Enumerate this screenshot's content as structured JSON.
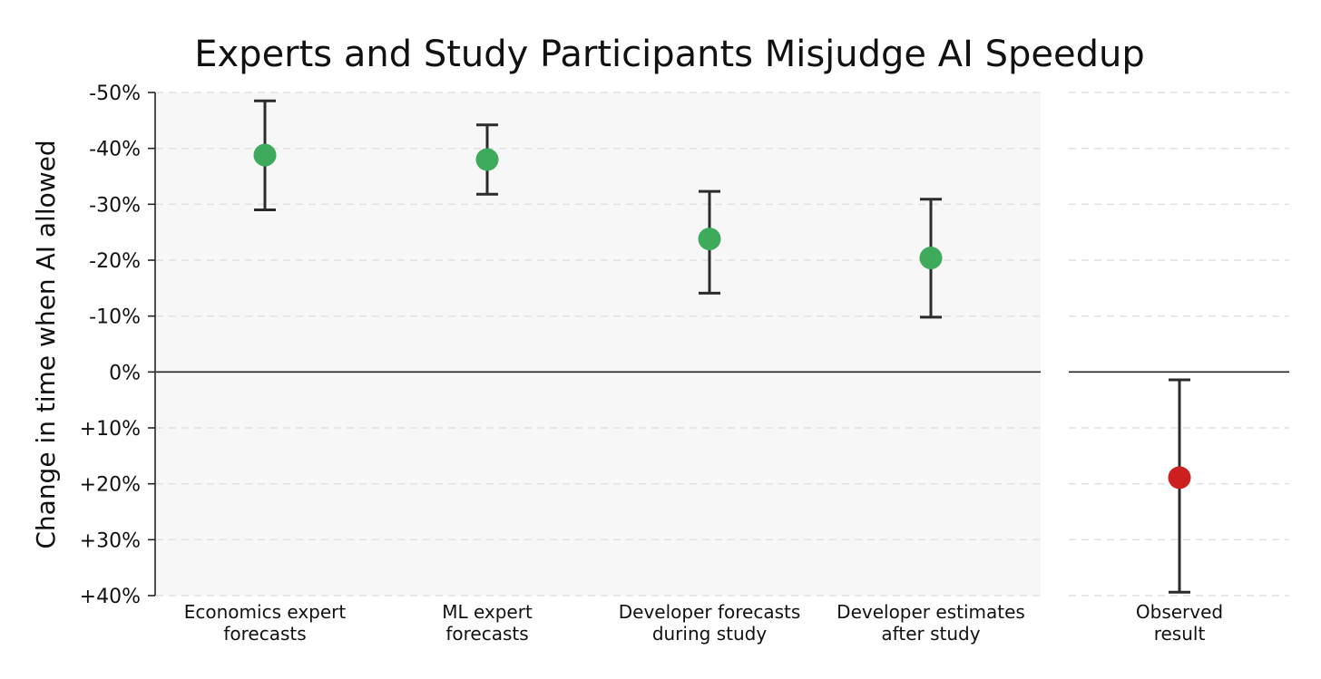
{
  "chart_data": {
    "type": "scatter",
    "title": "Experts and Study Participants Misjudge AI Speedup",
    "ylabel": "Change in time when AI allowed",
    "xlabel": "",
    "ylim": [
      -50,
      40
    ],
    "y_axis_inverted": true,
    "grid": true,
    "yticks": [
      "-50%",
      "-40%",
      "-30%",
      "-20%",
      "-10%",
      "0%",
      "+10%",
      "+20%",
      "+30%",
      "+40%"
    ],
    "ytick_values": [
      -50,
      -40,
      -30,
      -20,
      -10,
      0,
      10,
      20,
      30,
      40
    ],
    "panels": [
      {
        "name": "forecasts",
        "background": "#f7f7f7",
        "points": [
          {
            "category": "Economics expert\nforecasts",
            "value": -38.8,
            "lower": -48.5,
            "upper": -29.0,
            "color": "#3daa5c"
          },
          {
            "category": "ML expert\nforecasts",
            "value": -38.0,
            "lower": -44.2,
            "upper": -31.8,
            "color": "#3daa5c"
          },
          {
            "category": "Developer forecasts\nduring study",
            "value": -23.8,
            "lower": -32.3,
            "upper": -14.1,
            "color": "#3daa5c"
          },
          {
            "category": "Developer estimates\nafter study",
            "value": -20.4,
            "lower": -30.9,
            "upper": -9.8,
            "color": "#3daa5c"
          }
        ]
      },
      {
        "name": "observed",
        "background": "#ffffff",
        "points": [
          {
            "category": "Observed\nresult",
            "value": 18.9,
            "lower": 1.4,
            "upper": 39.4,
            "color": "#cc1f1f"
          }
        ]
      }
    ]
  }
}
